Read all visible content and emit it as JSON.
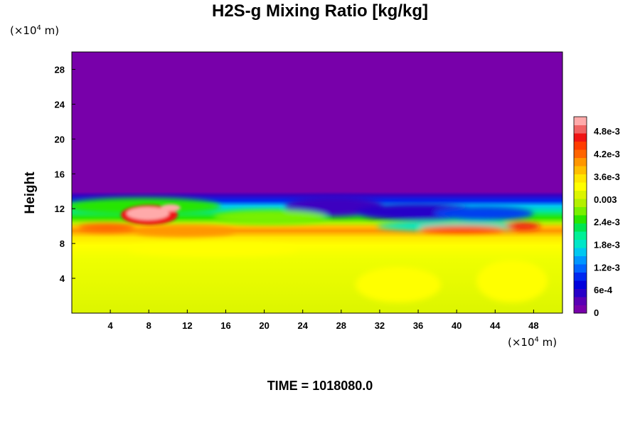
{
  "chart_data": {
    "type": "heatmap",
    "title": "H2S-g Mixing Ratio [kg/kg]",
    "x_unit": "(×10",
    "x_unit_exp": "4",
    "x_unit_m": " m)",
    "y_unit": "(×10",
    "y_unit_exp": "4",
    "y_unit_m": " m)",
    "ylabel": "Height",
    "xlabel": "",
    "xlim": [
      0,
      51
    ],
    "ylim": [
      0,
      30
    ],
    "x_ticks": [
      4,
      8,
      12,
      16,
      20,
      24,
      28,
      32,
      36,
      40,
      44,
      48
    ],
    "y_ticks": [
      4,
      8,
      12,
      16,
      20,
      24,
      28
    ],
    "colorbar": {
      "labels": [
        "0",
        "6e-4",
        "1.2e-3",
        "1.8e-3",
        "2.4e-3",
        "0.003",
        "3.6e-3",
        "4.2e-3",
        "4.8e-3"
      ],
      "label_values": [
        0,
        0.0006,
        0.0012,
        0.0018,
        0.0024,
        0.003,
        0.0036,
        0.0042,
        0.0048
      ],
      "range": [
        0,
        0.0052
      ],
      "colors": [
        "#7800aa",
        "#5a00b4",
        "#2800c8",
        "#0000dc",
        "#0028f0",
        "#0064ff",
        "#0096ff",
        "#00c8f0",
        "#00e6c8",
        "#00f096",
        "#00e650",
        "#28e600",
        "#78f000",
        "#b4f000",
        "#dcf500",
        "#ffff00",
        "#ffe600",
        "#ffbe00",
        "#ff9600",
        "#ff6400",
        "#ff3c00",
        "#f01414",
        "#f06464",
        "#ffaaaa"
      ]
    },
    "field_summary": [
      {
        "region": "upper layer",
        "height_range": [
          13.5,
          30
        ],
        "value": 0
      },
      {
        "region": "transition layer",
        "height_range": [
          10.5,
          13.5
        ],
        "value_range": [
          0.0006,
          0.0033
        ]
      },
      {
        "region": "peak layer",
        "height_range": [
          9,
          10.5
        ],
        "value_range": [
          0.0036,
          0.0046
        ]
      },
      {
        "region": "lower layer",
        "height_range": [
          0,
          9
        ],
        "value_range": [
          0.0034,
          0.0037
        ]
      },
      {
        "region": "maximum patch",
        "x_range": [
          6,
          11
        ],
        "height_range": [
          9.5,
          12
        ],
        "value": 0.005
      }
    ]
  },
  "time_label": "TIME = 1018080.0"
}
